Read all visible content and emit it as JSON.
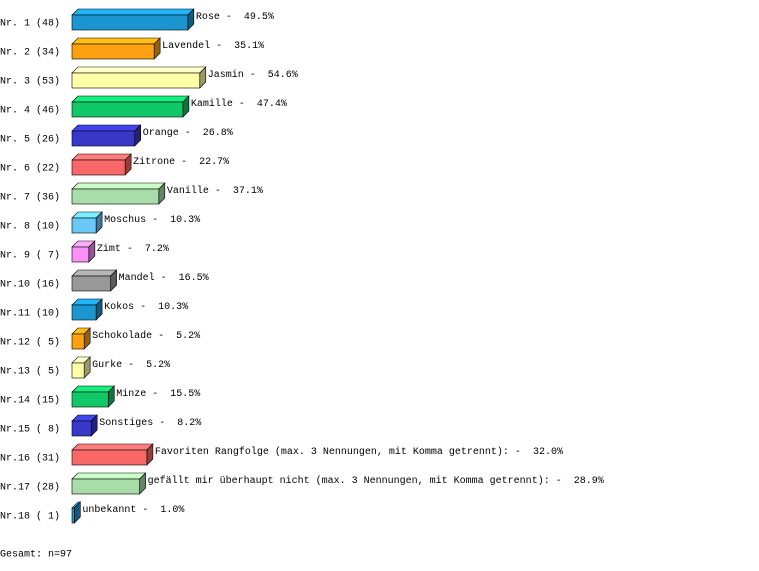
{
  "chart_data": {
    "type": "bar3d",
    "categories": [
      "Nr. 1 (48)",
      "Nr. 2 (34)",
      "Nr. 3 (53)",
      "Nr. 4 (46)",
      "Nr. 5 (26)",
      "Nr. 6 (22)",
      "Nr. 7 (36)",
      "Nr. 8 (10)",
      "Nr. 9 ( 7)",
      "Nr.10 (16)",
      "Nr.11 (10)",
      "Nr.12 ( 5)",
      "Nr.13 ( 5)",
      "Nr.14 (15)",
      "Nr.15 ( 8)",
      "Nr.16 (31)",
      "Nr.17 (28)",
      "Nr.18 ( 1)"
    ],
    "names": [
      "Rose -",
      "Lavendel -",
      "Jasmin -",
      "Kamille -",
      "Orange -",
      "Zitrone -",
      "Vanille -",
      "Moschus -",
      "Zimt -",
      "Mandel -",
      "Kokos -",
      "Schokolade -",
      "Gurke -",
      "Minze -",
      "Sonstiges -",
      "Favoriten Rangfolge (max. 3 Nennungen, mit Komma getrennt): -",
      "gefällt mir überhaupt nicht (max. 3 Nennungen, mit Komma getrennt): -",
      "unbekannt -"
    ],
    "values": [
      49.5,
      35.1,
      54.6,
      47.4,
      26.8,
      22.7,
      37.1,
      10.3,
      7.2,
      16.5,
      10.3,
      5.2,
      5.2,
      15.5,
      8.2,
      32.0,
      28.9,
      1.0
    ],
    "value_labels": [
      "49.5%",
      "35.1%",
      "54.6%",
      "47.4%",
      "26.8%",
      "22.7%",
      "37.1%",
      "10.3%",
      "7.2%",
      "16.5%",
      "10.3%",
      "5.2%",
      "5.2%",
      "15.5%",
      "8.2%",
      "32.0%",
      "28.9%",
      "1.0%"
    ],
    "colors": [
      "#1b96d0",
      "#ffa010",
      "#ffffa8",
      "#10c868",
      "#3838c8",
      "#f86868",
      "#a8dca8",
      "#68c8f8",
      "#f890f8",
      "#989898",
      "#1b96d0",
      "#ffa010",
      "#ffffa8",
      "#10c868",
      "#3838c8",
      "#f86868",
      "#a8dca8",
      "#1b96d0"
    ],
    "footer": "Gesamt: n=97"
  }
}
